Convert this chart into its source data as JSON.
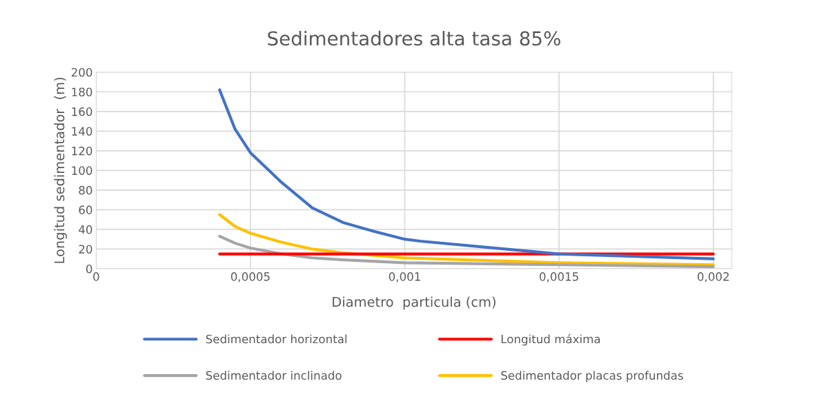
{
  "chart_data": {
    "type": "line",
    "title": "Sedimentadores alta tasa 85%",
    "xlabel": "Diametro  particula (cm)",
    "ylabel": "Longitud sedimentador  (m)",
    "xlim": [
      0,
      0.00206
    ],
    "xticks": [
      {
        "value": 0,
        "label": "0"
      },
      {
        "value": 0.0005,
        "label": "0,0005"
      },
      {
        "value": 0.001,
        "label": "0,001"
      },
      {
        "value": 0.0015,
        "label": "0,0015"
      },
      {
        "value": 0.002,
        "label": "0,002"
      }
    ],
    "ylim": [
      0,
      200
    ],
    "yticks": [
      0,
      20,
      40,
      60,
      80,
      100,
      120,
      140,
      160,
      180,
      200
    ],
    "grid": true,
    "legend": "bottom",
    "marker": "none",
    "line_style": "solid",
    "series": [
      {
        "name": "Sedimentador horizontal",
        "color": "#4472c4",
        "x": [
          0.0004,
          0.00045,
          0.0005,
          0.0006,
          0.0007,
          0.0008,
          0.0009,
          0.001,
          0.00105,
          0.0015,
          0.002
        ],
        "values": [
          182,
          142,
          118,
          88,
          62,
          47,
          38,
          30,
          28,
          15,
          10
        ]
      },
      {
        "name": "Longitud máxima",
        "color": "#ff0000",
        "x": [
          0.0004,
          0.002
        ],
        "values": [
          15,
          15
        ]
      },
      {
        "name": "Sedimentador inclinado",
        "color": "#a5a5a5",
        "x": [
          0.0004,
          0.00045,
          0.0005,
          0.0006,
          0.0007,
          0.0008,
          0.001,
          0.0015,
          0.002
        ],
        "values": [
          33,
          26,
          21,
          15,
          11,
          9,
          6,
          4,
          2
        ]
      },
      {
        "name": "Sedimentador placas profundas",
        "color": "#ffc000",
        "x": [
          0.0004,
          0.00045,
          0.0005,
          0.0006,
          0.0007,
          0.0008,
          0.001,
          0.0015,
          0.002
        ],
        "values": [
          55,
          43,
          36,
          27,
          20,
          16,
          11,
          6,
          4
        ]
      }
    ]
  }
}
